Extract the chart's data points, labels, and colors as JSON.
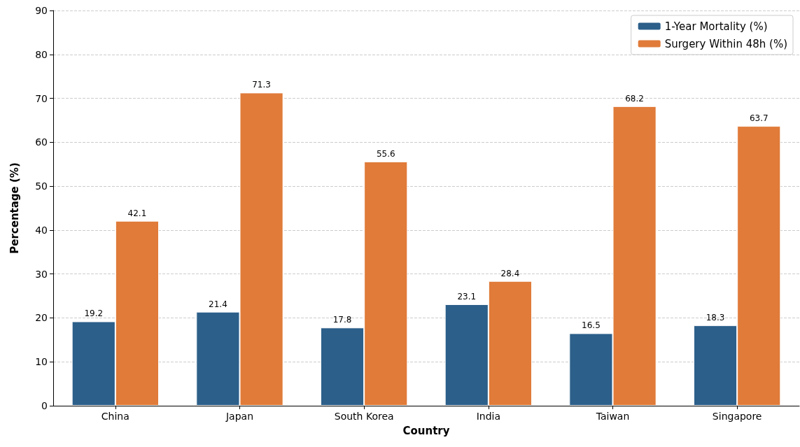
{
  "chart_data": {
    "type": "bar",
    "xlabel": "Country",
    "ylabel": "Percentage (%)",
    "categories": [
      "China",
      "Japan",
      "South Korea",
      "India",
      "Taiwan",
      "Singapore"
    ],
    "series": [
      {
        "name": "1-Year Mortality (%)",
        "color": "#2c5f8a",
        "values": [
          19.2,
          21.4,
          17.8,
          23.1,
          16.5,
          18.3
        ]
      },
      {
        "name": "Surgery Within 48h (%)",
        "color": "#e07b39",
        "values": [
          42.1,
          71.3,
          55.6,
          28.4,
          68.2,
          63.7
        ]
      }
    ],
    "ylim": [
      0,
      90
    ],
    "yticks": [
      0,
      10,
      20,
      30,
      40,
      50,
      60,
      70,
      80,
      90
    ],
    "grid": "y",
    "legend": "top right",
    "data_labels": true
  }
}
